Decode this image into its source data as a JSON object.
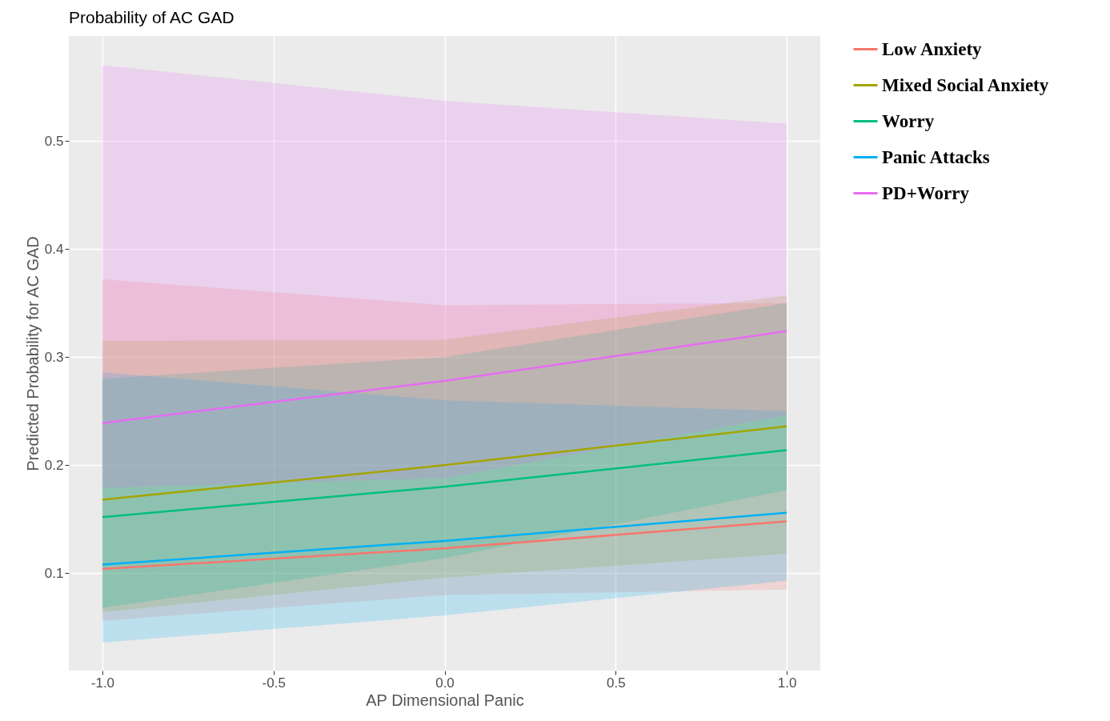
{
  "chart_data": {
    "type": "line",
    "title": "Probability of AC GAD",
    "xlabel": "AP Dimensional Panic",
    "ylabel": "Predicted Probability for AC GAD",
    "x": [
      -1,
      0,
      1
    ],
    "series": [
      {
        "name": "Low Anxiety",
        "color": "#f8766d",
        "values": [
          0.104,
          0.123,
          0.148
        ],
        "lower": [
          0.056,
          0.08,
          0.085
        ],
        "upper": [
          0.372,
          0.348,
          0.35
        ]
      },
      {
        "name": "Mixed Social Anxiety",
        "color": "#a3a500",
        "values": [
          0.168,
          0.2,
          0.236
        ],
        "lower": [
          0.064,
          0.096,
          0.118
        ],
        "upper": [
          0.315,
          0.316,
          0.357
        ]
      },
      {
        "name": "Worry",
        "color": "#00bf7d",
        "values": [
          0.152,
          0.18,
          0.214
        ],
        "lower": [
          0.068,
          0.114,
          0.177
        ],
        "upper": [
          0.28,
          0.3,
          0.35
        ]
      },
      {
        "name": "Panic Attacks",
        "color": "#00b0f6",
        "values": [
          0.108,
          0.13,
          0.156
        ],
        "lower": [
          0.036,
          0.061,
          0.093
        ],
        "upper": [
          0.286,
          0.26,
          0.25
        ]
      },
      {
        "name": "PD+Worry",
        "color": "#e76bf3",
        "values": [
          0.239,
          0.278,
          0.324
        ],
        "lower": [
          0.179,
          0.188,
          0.246
        ],
        "upper": [
          0.57,
          0.537,
          0.516
        ]
      }
    ],
    "xlim": [
      -1.098,
      1.098
    ],
    "ylim": [
      0.01,
      0.597
    ],
    "xticks": [
      {
        "value": -1,
        "label": "-1.0"
      },
      {
        "value": -0.5,
        "label": "-0.5"
      },
      {
        "value": 0,
        "label": "0.0"
      },
      {
        "value": 0.5,
        "label": "0.5"
      },
      {
        "value": 1,
        "label": "1.0"
      }
    ],
    "yticks": [
      0.1,
      0.2,
      0.3,
      0.4,
      0.5
    ],
    "grid": true,
    "legend": "right"
  }
}
